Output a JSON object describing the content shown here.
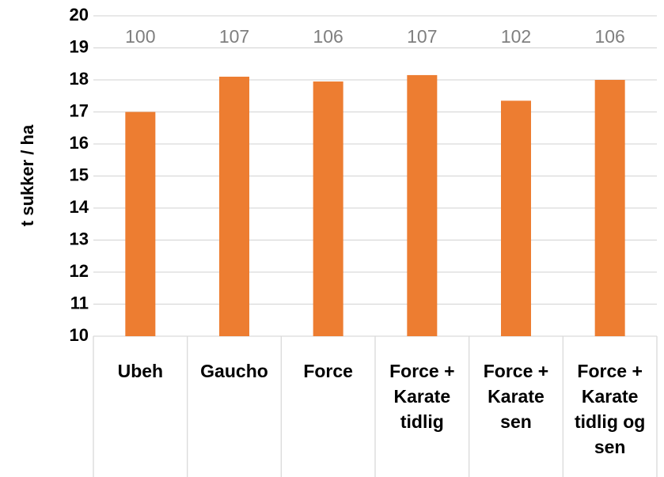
{
  "chart_data": {
    "type": "bar",
    "y_label": "t sukker / ha",
    "categories": [
      "Ubeh",
      "Gaucho",
      "Force",
      "Force + Karate tidlig",
      "Force + Karate sen",
      "Force + Karate tidlig og sen"
    ],
    "values": [
      17.0,
      18.1,
      17.95,
      18.15,
      17.35,
      18.0
    ],
    "index_labels": [
      100,
      107,
      106,
      107,
      102,
      106
    ],
    "color": "#ed7d31",
    "ylim": [
      10,
      20
    ],
    "yticks": [
      10,
      11,
      12,
      13,
      14,
      15,
      16,
      17,
      18,
      19,
      20
    ],
    "grid": true
  }
}
